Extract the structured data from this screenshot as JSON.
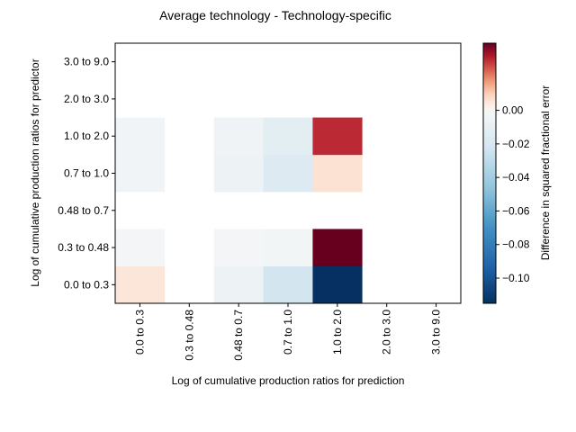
{
  "chart_data": {
    "type": "heatmap",
    "title": "Average technology - Technology-specific",
    "xlabel": "Log of cumulative production ratios for prediction",
    "ylabel": "Log of cumulative production ratios for predictor",
    "x_categories": [
      "0.0 to 0.3",
      "0.3 to 0.48",
      "0.48 to 0.7",
      "0.7 to 1.0",
      "1.0 to 2.0",
      "2.0 to 3.0",
      "3.0 to 9.0"
    ],
    "y_categories": [
      "0.0 to 0.3",
      "0.3 to 0.48",
      "0.48 to 0.7",
      "0.7 to 1.0",
      "1.0 to 2.0",
      "2.0 to 3.0",
      "3.0 to 9.0"
    ],
    "values": [
      [
        0.005,
        null,
        -0.006,
        -0.022,
        -0.115,
        null,
        null
      ],
      [
        -0.002,
        null,
        -0.002,
        -0.003,
        0.04,
        null,
        null
      ],
      [
        null,
        null,
        null,
        null,
        null,
        null,
        null
      ],
      [
        -0.004,
        null,
        -0.006,
        -0.016,
        0.006,
        null,
        null
      ],
      [
        -0.004,
        null,
        -0.005,
        -0.012,
        0.03,
        null,
        null
      ],
      [
        null,
        null,
        null,
        null,
        null,
        null,
        null
      ],
      [
        null,
        null,
        null,
        null,
        null,
        null,
        null
      ]
    ],
    "colorbar": {
      "label": "Difference in squared fractional error",
      "ticks": [
        0.0,
        -0.02,
        -0.04,
        -0.06,
        -0.08,
        -0.1
      ],
      "tick_labels": [
        "0.00",
        "−0.02",
        "−0.04",
        "−0.06",
        "−0.08",
        "−0.10"
      ],
      "range": [
        -0.115,
        0.04
      ]
    },
    "colormap": "RdBu_r"
  }
}
